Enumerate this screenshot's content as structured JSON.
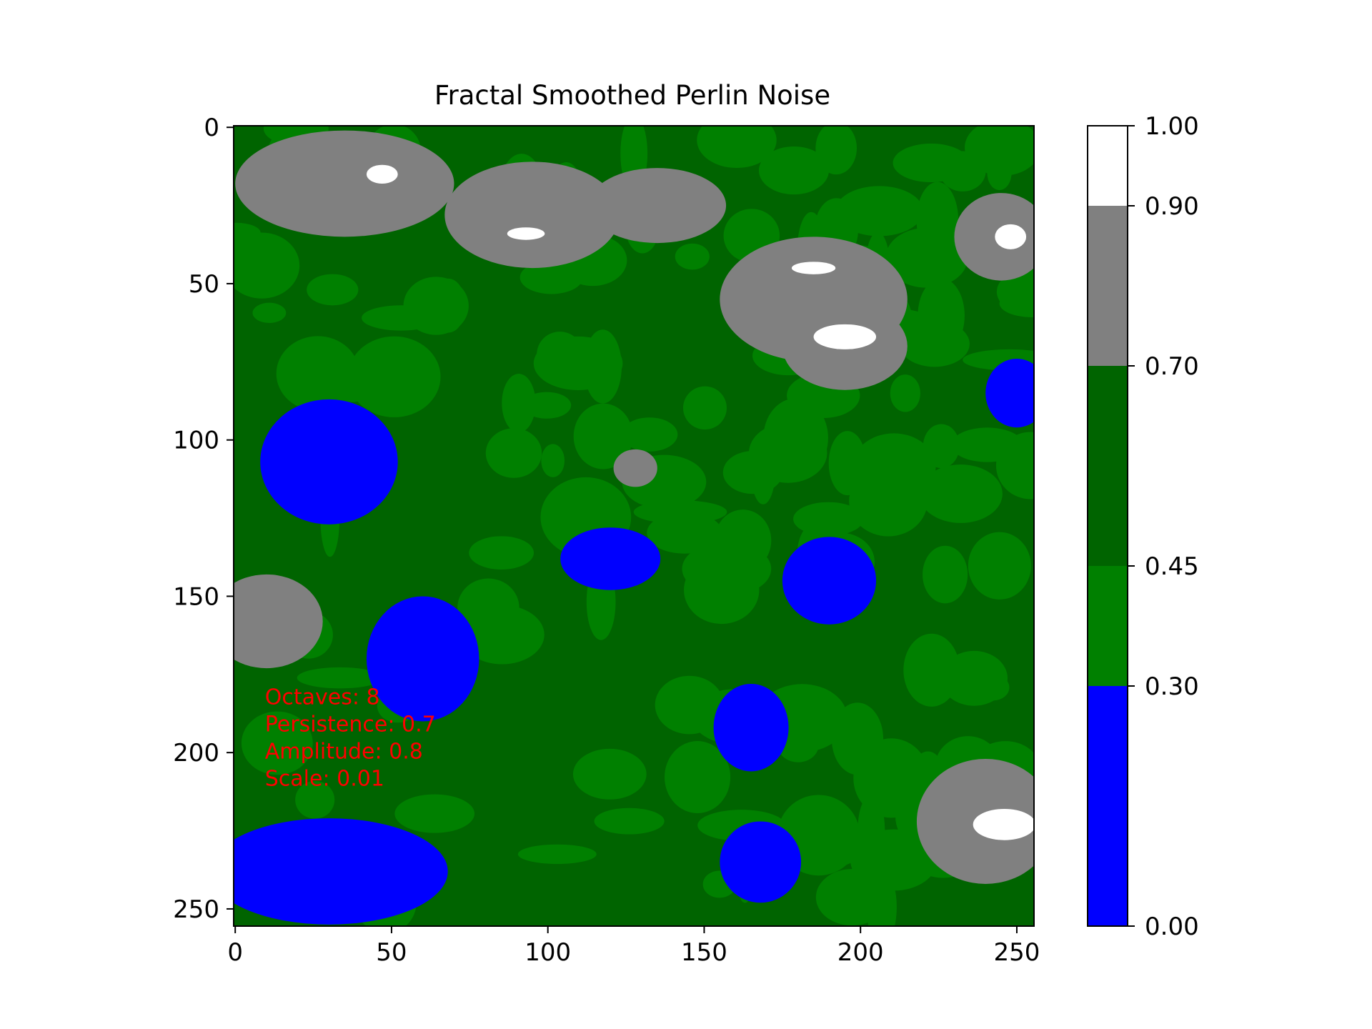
{
  "chart_data": {
    "type": "heatmap",
    "title": "Fractal Smoothed Perlin Noise",
    "xlabel": "",
    "ylabel": "",
    "grid_size": [
      256,
      256
    ],
    "x_ticks": [
      0,
      50,
      100,
      150,
      200,
      250
    ],
    "y_ticks": [
      0,
      50,
      100,
      150,
      200,
      250
    ],
    "y_axis_direction": "top-to-bottom",
    "colorbar": {
      "boundaries": [
        0.0,
        0.3,
        0.45,
        0.7,
        0.9,
        1.0
      ],
      "tick_labels": [
        "0.00",
        "0.30",
        "0.45",
        "0.70",
        "0.90",
        "1.00"
      ],
      "colors": [
        "#0000ff",
        "#008000",
        "#006400",
        "#808080",
        "#ffffff"
      ],
      "placement": "right"
    },
    "annotation": {
      "lines": [
        "Octaves: 8",
        "Persistence: 0.7",
        "Amplitude: 0.8",
        "Scale: 0.01"
      ],
      "color": "#ff0000",
      "position_data": [
        10,
        185
      ]
    },
    "regions_approx": {
      "blue": [
        {
          "x": 30,
          "y": 107,
          "rx": 22,
          "ry": 20
        },
        {
          "x": 60,
          "y": 170,
          "rx": 18,
          "ry": 20
        },
        {
          "x": 30,
          "y": 238,
          "rx": 38,
          "ry": 17
        },
        {
          "x": 120,
          "y": 138,
          "rx": 16,
          "ry": 10
        },
        {
          "x": 190,
          "y": 145,
          "rx": 15,
          "ry": 14
        },
        {
          "x": 165,
          "y": 192,
          "rx": 12,
          "ry": 14
        },
        {
          "x": 168,
          "y": 235,
          "rx": 13,
          "ry": 13
        },
        {
          "x": 250,
          "y": 85,
          "rx": 10,
          "ry": 11
        }
      ],
      "gray": [
        {
          "x": 35,
          "y": 18,
          "rx": 35,
          "ry": 17
        },
        {
          "x": 95,
          "y": 28,
          "rx": 28,
          "ry": 17
        },
        {
          "x": 135,
          "y": 25,
          "rx": 22,
          "ry": 12
        },
        {
          "x": 185,
          "y": 55,
          "rx": 30,
          "ry": 20
        },
        {
          "x": 195,
          "y": 70,
          "rx": 20,
          "ry": 14
        },
        {
          "x": 245,
          "y": 35,
          "rx": 15,
          "ry": 14
        },
        {
          "x": 240,
          "y": 222,
          "rx": 22,
          "ry": 20
        },
        {
          "x": 10,
          "y": 158,
          "rx": 18,
          "ry": 15
        },
        {
          "x": 128,
          "y": 109,
          "rx": 7,
          "ry": 6
        }
      ],
      "white": [
        {
          "x": 47,
          "y": 15,
          "rx": 5,
          "ry": 3
        },
        {
          "x": 93,
          "y": 34,
          "rx": 6,
          "ry": 2
        },
        {
          "x": 185,
          "y": 45,
          "rx": 7,
          "ry": 2
        },
        {
          "x": 195,
          "y": 67,
          "rx": 10,
          "ry": 4
        },
        {
          "x": 248,
          "y": 35,
          "rx": 5,
          "ry": 4
        },
        {
          "x": 246,
          "y": 223,
          "rx": 10,
          "ry": 5
        }
      ]
    }
  }
}
